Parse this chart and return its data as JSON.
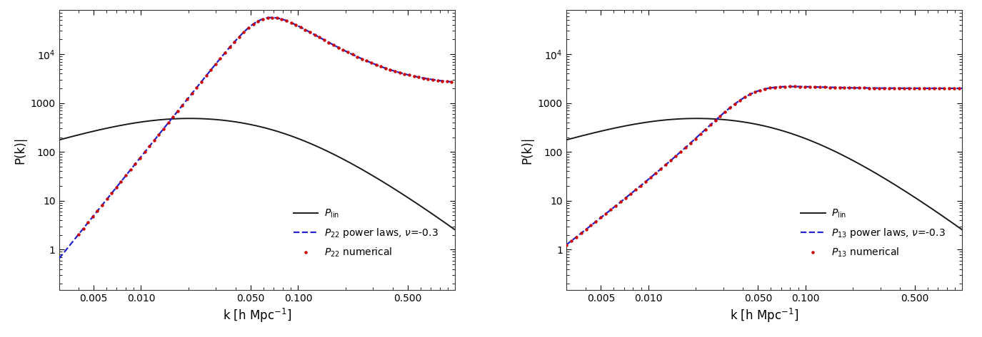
{
  "figsize": [
    13.75,
    4.73
  ],
  "dpi": 100,
  "background_color": "#ffffff",
  "xlim": [
    0.003,
    1.0
  ],
  "ylim": [
    0.15,
    80000
  ],
  "xlabel": "k [h Mpc$^{-1}$]",
  "ylabel": "P(k)|",
  "panel1": {
    "legend_line1": "$P_{\\rm lin}$",
    "legend_line2": "$P_{22}$ power laws, $\\nu$=-0.3",
    "legend_line3": "$P_{22}$ numerical"
  },
  "panel2": {
    "legend_line1": "$P_{\\rm lin}$",
    "legend_line2": "$P_{13}$ power laws, $\\nu$=-0.3",
    "legend_line3": "$P_{13}$ numerical"
  },
  "lin_color": "#1a1a1a",
  "powerlaw_color": "#2222cc",
  "numerical_color": "#cc0000",
  "lin_lw": 1.4,
  "powerlaw_lw": 1.6,
  "numerical_ms": 3.2,
  "xticks": [
    0.005,
    0.01,
    0.05,
    0.1,
    0.5
  ],
  "xtick_labels": [
    "0.005",
    "0.010",
    "0.050",
    "0.100",
    "0.500"
  ],
  "yticks": [
    1,
    10,
    100,
    1000,
    10000
  ],
  "ytick_labels": [
    "1",
    "10",
    "100",
    "1000",
    "$10^4$"
  ]
}
